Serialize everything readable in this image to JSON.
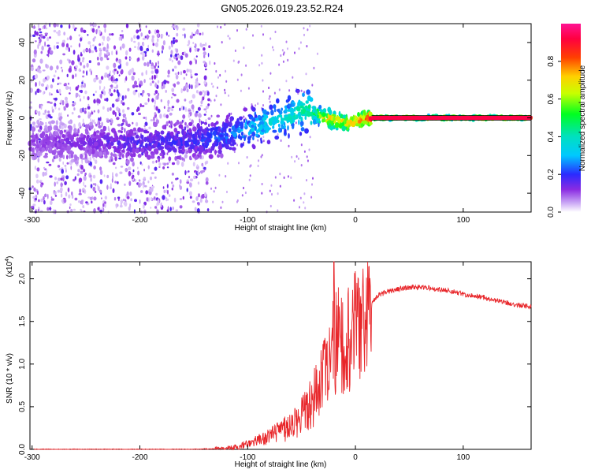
{
  "figure_title": "GN05.2026.019.23.52.R24",
  "chart_data": [
    {
      "type": "heatmap",
      "title": "GN05.2026.019.23.52.R24",
      "xlabel": "Height of straight line (km)",
      "ylabel": "Frequency (Hz)",
      "xlim": [
        -302,
        163
      ],
      "ylim": [
        -50,
        50
      ],
      "xticks": [
        -300,
        -200,
        -100,
        0,
        100
      ],
      "xtick_labels": [
        "-300",
        "-200",
        "-100",
        "0",
        "100"
      ],
      "yticks": [
        -40,
        -20,
        0,
        20,
        40
      ],
      "ytick_labels": [
        "-40",
        "-20",
        "0",
        "20",
        "40"
      ],
      "colorbar": {
        "label": "Normalized spectral amplitude",
        "range": [
          0,
          1
        ],
        "ticks": [
          0.0,
          0.2,
          0.4,
          0.6,
          0.8
        ],
        "tick_labels": [
          "0.0",
          "0.2",
          "0.4",
          "0.6",
          "0.8"
        ]
      },
      "ridge": {
        "description_points": [
          {
            "x": -300,
            "freq": -13,
            "amp": 0.12
          },
          {
            "x": -250,
            "freq": -13,
            "amp": 0.14
          },
          {
            "x": -200,
            "freq": -13,
            "amp": 0.18
          },
          {
            "x": -150,
            "freq": -12,
            "amp": 0.2
          },
          {
            "x": -120,
            "freq": -9,
            "amp": 0.25
          },
          {
            "x": -100,
            "freq": -6,
            "amp": 0.32
          },
          {
            "x": -80,
            "freq": -3,
            "amp": 0.38
          },
          {
            "x": -60,
            "freq": 1,
            "amp": 0.42
          },
          {
            "x": -50,
            "freq": 4,
            "amp": 0.45
          },
          {
            "x": -40,
            "freq": 3,
            "amp": 0.5
          },
          {
            "x": -30,
            "freq": 0,
            "amp": 0.7
          },
          {
            "x": -20,
            "freq": -1,
            "amp": 0.8
          },
          {
            "x": -10,
            "freq": -3,
            "amp": 0.75
          },
          {
            "x": 0,
            "freq": -2,
            "amp": 0.8
          },
          {
            "x": 10,
            "freq": 0,
            "amp": 0.9
          },
          {
            "x": 20,
            "freq": 0,
            "amp": 0.95
          },
          {
            "x": 60,
            "freq": 0,
            "amp": 0.95
          },
          {
            "x": 100,
            "freq": 0,
            "amp": 0.95
          },
          {
            "x": 163,
            "freq": 0,
            "amp": 0.95
          }
        ]
      }
    },
    {
      "type": "line",
      "xlabel": "Height of straight line (km)",
      "ylabel": "SNR (10 * v/v)",
      "y_multiplier_label": "(x10",
      "y_multiplier_exponent": "4",
      "y_multiplier_close": ")",
      "xlim": [
        -302,
        163
      ],
      "ylim": [
        0,
        2.2
      ],
      "xticks": [
        -300,
        -200,
        -100,
        0,
        100
      ],
      "xtick_labels": [
        "-300",
        "-200",
        "-100",
        "0",
        "100"
      ],
      "yticks": [
        0.0,
        0.5,
        1.0,
        1.5,
        2.0
      ],
      "ytick_labels": [
        "0.0",
        "0.5",
        "1.0",
        "1.5",
        "2.0"
      ],
      "color": "#e8262a",
      "series": [
        {
          "name": "SNR",
          "x": [
            -302,
            -250,
            -200,
            -150,
            -120,
            -110,
            -100,
            -90,
            -80,
            -70,
            -60,
            -50,
            -45,
            -40,
            -35,
            -30,
            -25,
            -22,
            -20,
            -15,
            -10,
            -5,
            0,
            5,
            10,
            15,
            20,
            30,
            40,
            50,
            60,
            70,
            80,
            90,
            100,
            120,
            140,
            163
          ],
          "y": [
            0.0,
            0.0,
            0.0,
            0.0,
            0.01,
            0.03,
            0.06,
            0.1,
            0.15,
            0.2,
            0.28,
            0.4,
            0.5,
            0.6,
            0.72,
            0.8,
            0.95,
            1.05,
            1.2,
            1.25,
            1.3,
            1.35,
            1.4,
            1.5,
            1.6,
            1.7,
            1.8,
            1.85,
            1.88,
            1.9,
            1.9,
            1.89,
            1.87,
            1.85,
            1.82,
            1.78,
            1.72,
            1.67
          ]
        }
      ]
    }
  ]
}
